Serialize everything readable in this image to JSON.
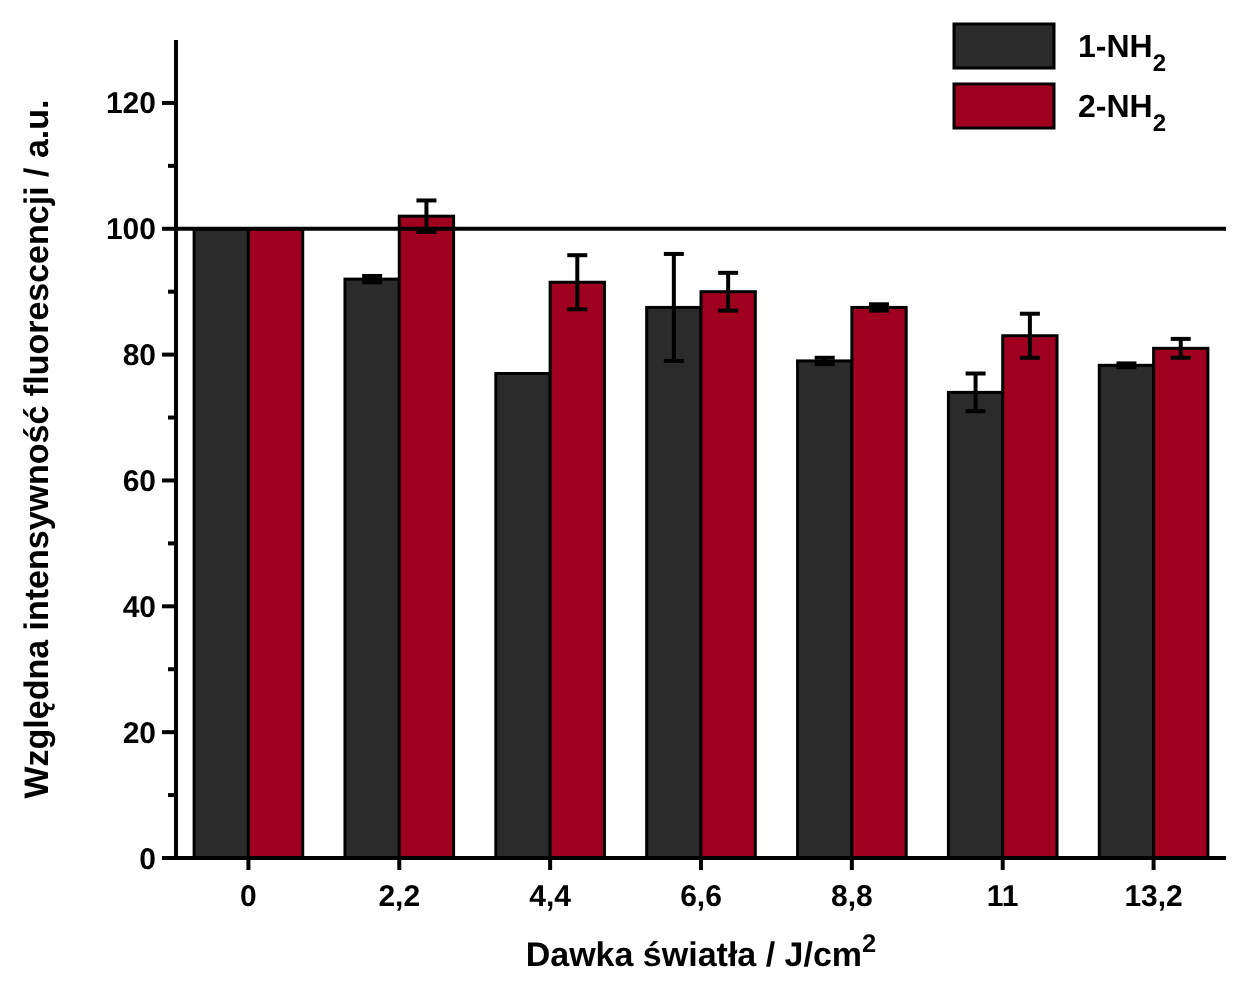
{
  "chart_data": {
    "type": "bar",
    "xlabel": "Dawka światła / J/cm$^{2}$",
    "ylabel": "Względna intensywność fluorescencji / a.u.",
    "categories": [
      "0",
      "2,2",
      "4,4",
      "6,6",
      "8,8",
      "11",
      "13,2"
    ],
    "series": [
      {
        "name": "1-NH$_{2}$",
        "color": "#2b2b2b",
        "values": [
          100,
          92,
          77,
          87.5,
          79,
          74,
          78.3
        ],
        "errors": [
          null,
          0.5,
          null,
          8.5,
          0.5,
          3,
          0.3
        ]
      },
      {
        "name": "2-NH$_{2}$",
        "color": "#a00020",
        "values": [
          100,
          102,
          91.5,
          90,
          87.5,
          83,
          81
        ],
        "errors": [
          null,
          2.5,
          4.3,
          3,
          0.5,
          3.5,
          1.5
        ]
      }
    ],
    "ylim": [
      0,
      130
    ],
    "yticks": [
      0,
      {
        "value": 10,
        "label": null
      },
      20,
      {
        "value": 30,
        "label": null
      },
      40,
      {
        "value": 50,
        "label": null
      },
      60,
      {
        "value": 70,
        "label": null
      },
      80,
      {
        "value": 90,
        "label": null
      },
      100,
      {
        "value": 110,
        "label": null
      },
      120
    ],
    "ref_lines": [
      {
        "axis": "y",
        "value": 100,
        "color": "#000000"
      }
    ],
    "legend": "top right",
    "grid": false
  }
}
